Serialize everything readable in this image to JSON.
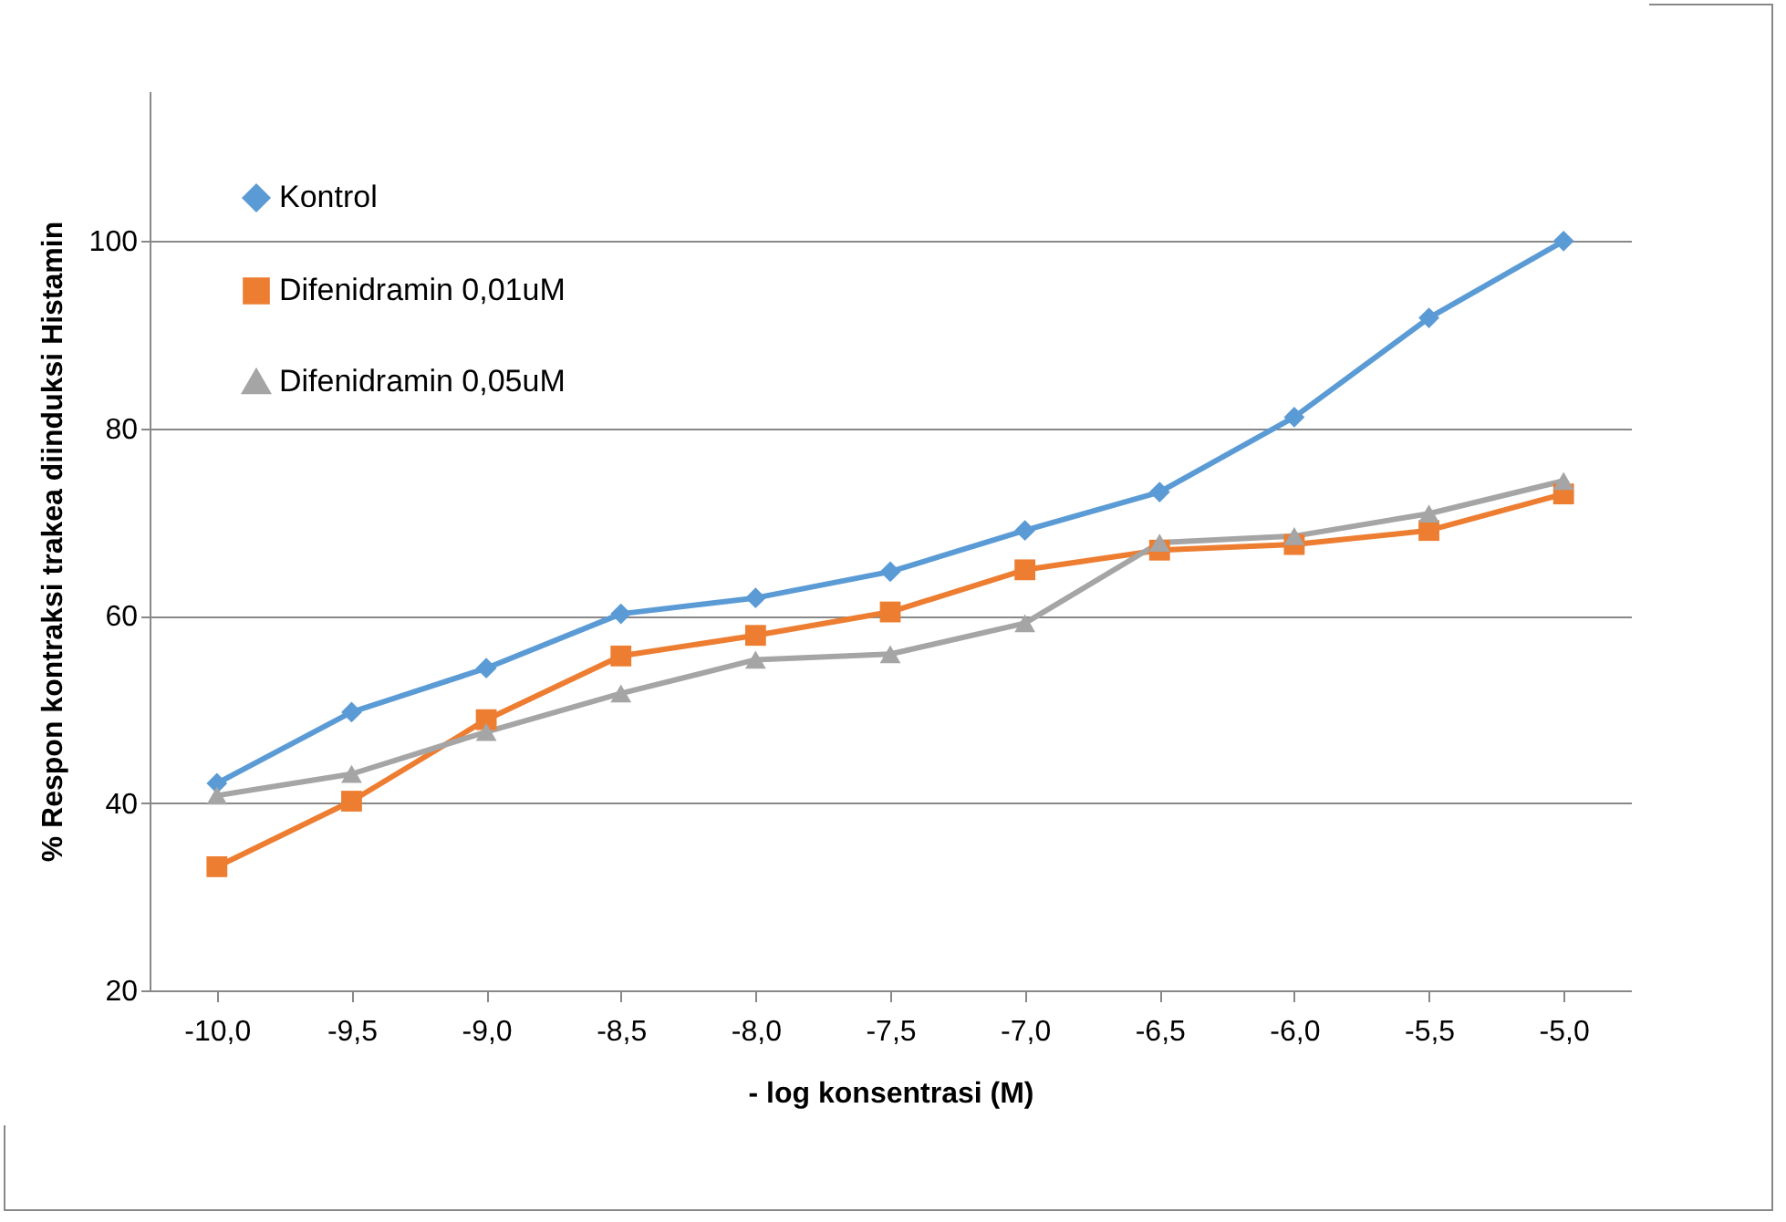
{
  "chart_data": {
    "type": "line",
    "xlabel": "- log konsentrasi (M)",
    "ylabel": "% Respon kontraksi trakea diinduksi Histamin",
    "categories": [
      "-10,0",
      "-9,5",
      "-9,0",
      "-8,5",
      "-8,0",
      "-7,5",
      "-7,0",
      "-6,5",
      "-6,0",
      "-5,5",
      "-5,0"
    ],
    "series": [
      {
        "name": "Kontrol",
        "color": "#5b9bd5",
        "marker": "diamond",
        "values": [
          42.1,
          49.7,
          54.4,
          60.2,
          61.9,
          64.7,
          69.1,
          73.2,
          81.2,
          91.8,
          100
        ]
      },
      {
        "name": "Difenidramin 0,01uM",
        "color": "#ed7d31",
        "marker": "square",
        "values": [
          33.2,
          40.2,
          48.9,
          55.7,
          57.9,
          60.4,
          64.9,
          67,
          67.6,
          69.1,
          73
        ]
      },
      {
        "name": "Difenidramin 0,05uM",
        "color": "#a5a5a5",
        "marker": "triangle",
        "values": [
          40.8,
          43.1,
          47.6,
          51.7,
          55.3,
          55.9,
          59.2,
          67.8,
          68.5,
          70.9,
          74.4
        ]
      }
    ],
    "ylim": [
      20,
      116
    ],
    "yticks": [
      20,
      40,
      60,
      80,
      100
    ],
    "grid": "y",
    "legend": "top left"
  }
}
